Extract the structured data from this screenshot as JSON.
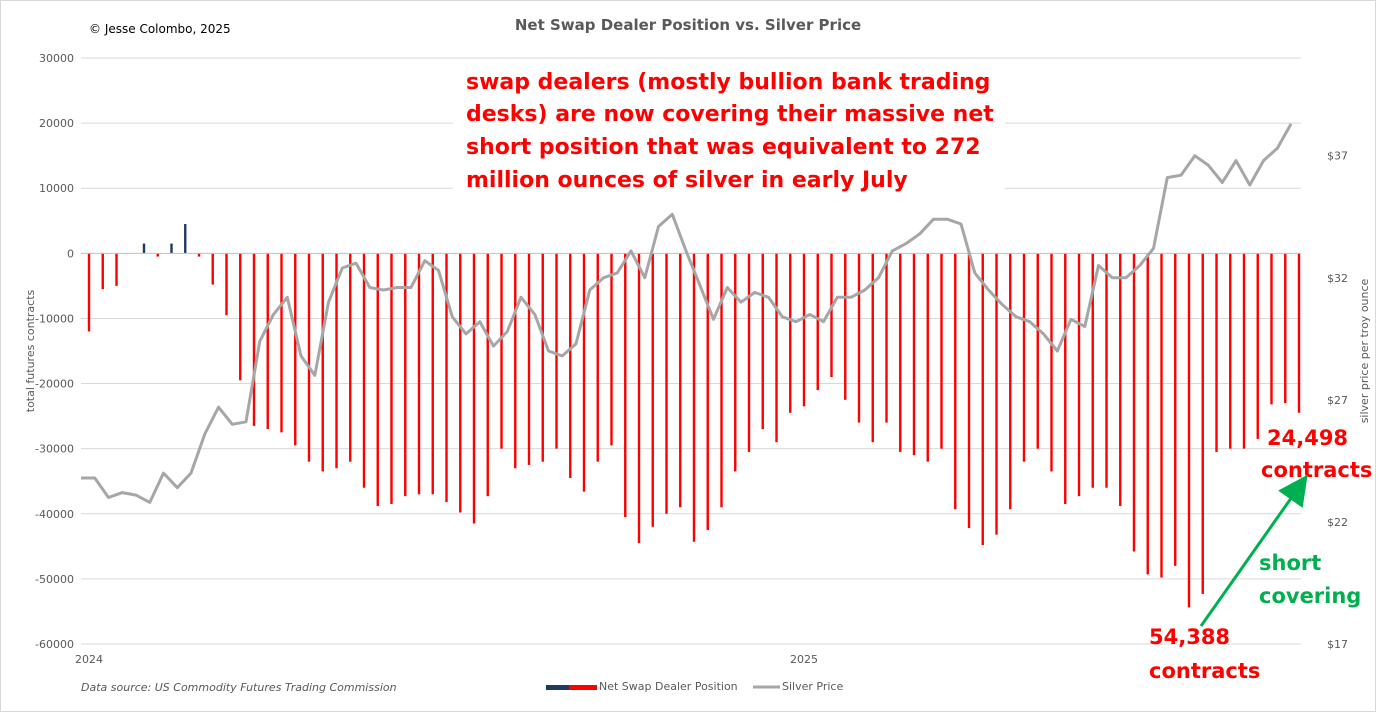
{
  "chart_data": {
    "type": "bar",
    "title": "Net Swap Dealer Position vs. Silver Price",
    "copyright": "© Jesse Colombo, 2025",
    "source": "Data source: US Commodity Futures Trading Commission",
    "ylabel": "total futures contracts",
    "y2label": "silver price per troy ounce",
    "ylim": [
      -60000,
      30000
    ],
    "y_ticks": [
      30000,
      20000,
      10000,
      0,
      -10000,
      -20000,
      -30000,
      -40000,
      -50000,
      -60000
    ],
    "y_tick_labels": [
      "30000",
      "20000",
      "10000",
      "0",
      "-10000",
      "-20000",
      "-30000",
      "-40000",
      "-50000",
      "-60000"
    ],
    "y2lim": [
      17,
      41
    ],
    "y2_ticks": [
      17,
      22,
      27,
      32,
      37
    ],
    "y2_tick_labels": [
      "$17",
      "$22",
      "$27",
      "$32",
      "$37"
    ],
    "x_labels": [
      {
        "label": "2024",
        "week": 0
      },
      {
        "label": "2025",
        "week": 52
      }
    ],
    "grid": true,
    "legend": "bottom",
    "colors": {
      "negative": "#ff0000",
      "positive": "#1f3864",
      "silver": "#a6a6a6",
      "grid": "#d9d9d9"
    },
    "series": [
      {
        "name": "Net Swap Dealer Position",
        "type": "bar",
        "values": [
          -12000,
          -5500,
          -5000,
          0,
          1500,
          -500,
          1500,
          4500,
          -500,
          -4800,
          -9500,
          -19500,
          -26500,
          -27000,
          -27500,
          -29500,
          -32000,
          -33500,
          -33000,
          -32000,
          -36000,
          -38800,
          -38500,
          -37300,
          -37000,
          -37000,
          -38200,
          -39800,
          -41500,
          -37300,
          -30000,
          -33000,
          -32500,
          -32000,
          -30000,
          -34500,
          -36600,
          -32000,
          -29500,
          -40500,
          -44500,
          -42000,
          -40000,
          -39000,
          -44300,
          -42500,
          -39000,
          -33500,
          -30500,
          -27000,
          -29000,
          -24500,
          -23500,
          -21000,
          -19000,
          -22500,
          -26000,
          -29000,
          -26000,
          -30500,
          -31000,
          -32000,
          -30000,
          -39300,
          -42200,
          -44800,
          -43200,
          -39300,
          -32000,
          -30000,
          -33500,
          -38500,
          -37300,
          -36000,
          -36000,
          -38800,
          -45800,
          -49300,
          -49800,
          -48000,
          -54388,
          -52300,
          -30500,
          -30000,
          -30000,
          -28500,
          -23200,
          -23000,
          -24498
        ]
      },
      {
        "name": "Silver Price",
        "type": "line",
        "axis": "right",
        "values": [
          23.8,
          23.8,
          23.0,
          23.2,
          23.1,
          22.8,
          24.0,
          23.4,
          24.0,
          25.6,
          26.7,
          26.0,
          26.1,
          29.4,
          30.5,
          31.2,
          28.8,
          28.0,
          31.0,
          32.4,
          32.6,
          31.6,
          31.5,
          31.6,
          31.6,
          32.7,
          32.3,
          30.4,
          29.7,
          30.2,
          29.2,
          29.8,
          31.2,
          30.5,
          29.0,
          28.8,
          29.3,
          31.5,
          32.0,
          32.2,
          33.1,
          32.0,
          34.1,
          34.6,
          33.1,
          31.7,
          30.3,
          31.6,
          31.0,
          31.4,
          31.2,
          30.4,
          30.2,
          30.5,
          30.2,
          31.2,
          31.2,
          31.5,
          32.0,
          33.1,
          33.4,
          33.8,
          34.4,
          34.4,
          34.2,
          32.2,
          31.5,
          30.9,
          30.4,
          30.2,
          29.7,
          29.0,
          30.3,
          30.0,
          32.5,
          32.0,
          32.0,
          32.5,
          33.2,
          36.1,
          36.2,
          37.0,
          36.6,
          35.9,
          36.8,
          35.8,
          36.8,
          37.3,
          38.3
        ]
      }
    ]
  },
  "annotations": {
    "main_lines": [
      "swap dealers (mostly bullion bank trading",
      "desks) are now covering their massive net",
      "short position that was equivalent to 272",
      "million ounces of silver in early July"
    ],
    "low_value": "54,388",
    "low_unit": "contracts",
    "latest_value": "24,498",
    "latest_unit": "contracts",
    "arrow_line1": "short",
    "arrow_line2": "covering"
  },
  "legend_items": {
    "bars": "Net Swap Dealer Position",
    "line": "Silver Price"
  }
}
